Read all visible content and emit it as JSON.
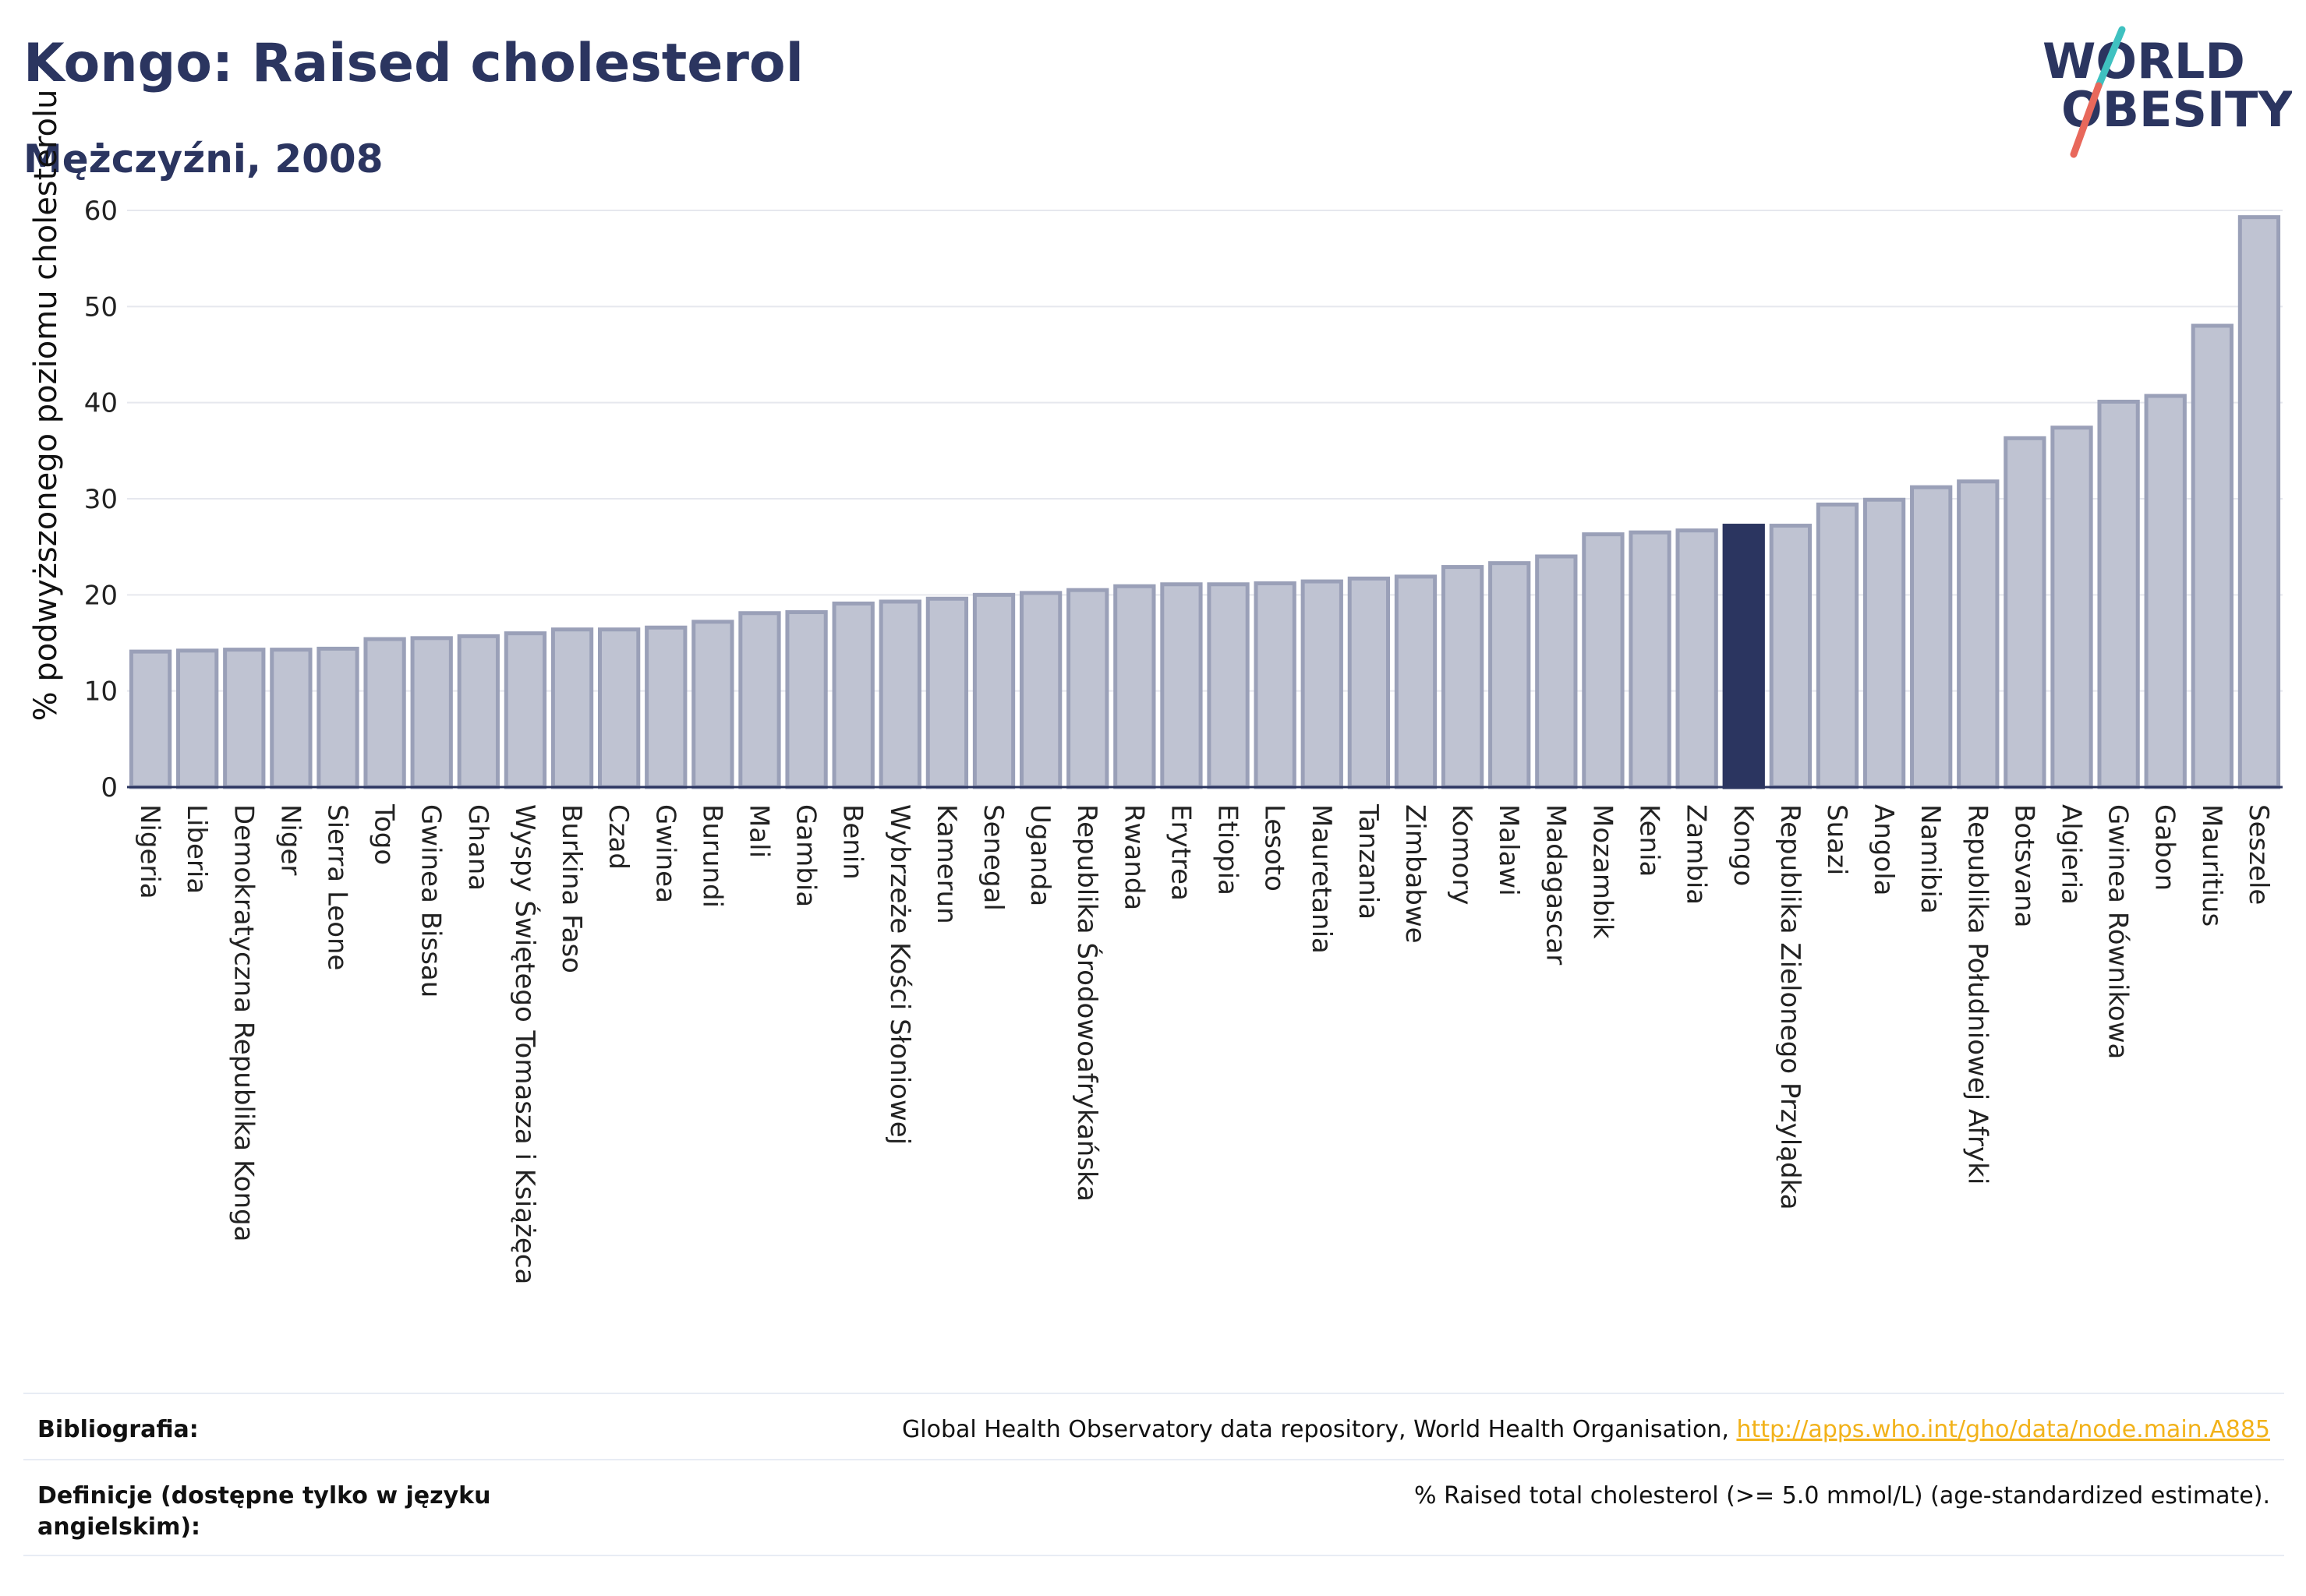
{
  "header": {
    "title": "Kongo: Raised cholesterol",
    "subtitle": "Mężczyźni, 2008"
  },
  "logo": {
    "line1": "WORLD",
    "line2": "OBESITY",
    "text_color": "#2b3560",
    "slash_top_color": "#3fc1c0",
    "slash_bottom_color": "#e8685b"
  },
  "chart_data": {
    "type": "bar",
    "title": "Kongo: Raised cholesterol",
    "subtitle": "Mężczyźni, 2008",
    "xlabel": "",
    "ylabel": "% podwyższonego poziomu cholesterolu",
    "ylim": [
      0,
      60
    ],
    "yticks": [
      0,
      10,
      20,
      30,
      40,
      50,
      60
    ],
    "grid": true,
    "legend": "none",
    "highlight": "Kongo",
    "colors": {
      "bar": "#bfc3d2",
      "bar_edge": "#9aa0b8",
      "highlight": "#2b3560"
    },
    "categories": [
      "Nigeria",
      "Liberia",
      "Demokratyczna Republika Konga",
      "Niger",
      "Sierra Leone",
      "Togo",
      "Gwinea Bissau",
      "Ghana",
      "Wyspy Świętego Tomasza i Książęca",
      "Burkina Faso",
      "Czad",
      "Gwinea",
      "Burundi",
      "Mali",
      "Gambia",
      "Benin",
      "Wybrzeże Kości Słoniowej",
      "Kamerun",
      "Senegal",
      "Uganda",
      "Republika Środowoafrykańska",
      "Rwanda",
      "Erytrea",
      "Etiopia",
      "Lesoto",
      "Mauretania",
      "Tanzania",
      "Zimbabwe",
      "Komory",
      "Malawi",
      "Madagascar",
      "Mozambik",
      "Kenia",
      "Zambia",
      "Kongo",
      "Republika Zielonego Przylądka",
      "Suazi",
      "Angola",
      "Namibia",
      "Republika Południowej Afryki",
      "Botsvana",
      "Algieria",
      "Gwinea Równikowa",
      "Gabon",
      "Mauritius",
      "Seszele"
    ],
    "values": [
      14.1,
      14.2,
      14.3,
      14.3,
      14.4,
      15.4,
      15.5,
      15.7,
      16.0,
      16.4,
      16.4,
      16.6,
      17.2,
      18.1,
      18.2,
      19.1,
      19.3,
      19.6,
      20.0,
      20.2,
      20.5,
      20.9,
      21.1,
      21.1,
      21.2,
      21.4,
      21.7,
      21.9,
      22.9,
      23.3,
      24.0,
      26.3,
      26.5,
      26.7,
      27.2,
      27.2,
      29.4,
      29.9,
      31.2,
      31.8,
      36.3,
      37.4,
      40.1,
      40.7,
      48.0,
      59.3
    ]
  },
  "footer": {
    "bibliography_label": "Bibliografia:",
    "bibliography_text": "Global Health Observatory data repository, World Health Organisation, ",
    "bibliography_link": "http://apps.who.int/gho/data/node.main.A885",
    "definition_label": "Definicje (dostępne tylko w języku angielskim):",
    "definition_text": "% Raised total cholesterol (>= 5.0 mmol/L) (age-standardized estimate)."
  }
}
